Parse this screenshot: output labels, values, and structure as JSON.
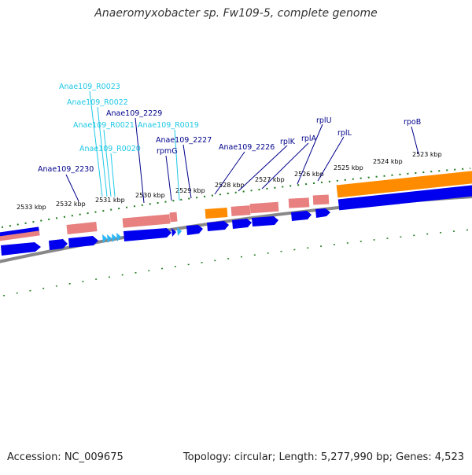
{
  "title": "Anaeromyxobacter sp. Fw109-5, complete genome",
  "footer": {
    "accession": "Accession: NC_009675",
    "summary": "Topology: circular; Length: 5,277,990 bp; Genes: 4,523"
  },
  "colors": {
    "cds": "#0000ee",
    "rna_tick": "#29b6f6",
    "gene_pink": "#e88080",
    "gene_orange": "#ff8c00",
    "label_dark": "#00008b",
    "label_light": "#1ec8e6",
    "tick": "#1e7a1e",
    "backbone": "#888888"
  },
  "scale": {
    "unit": "kbp",
    "labels": [
      "2533 kbp",
      "2532 kbp",
      "2531 kbp",
      "2530 kbp",
      "2529 kbp",
      "2528 kbp",
      "2527 kbp",
      "2526 kbp",
      "2525 kbp",
      "2524 kbp",
      "2523 kbp"
    ]
  },
  "gene_labels": [
    {
      "text": "Anae109_R0023",
      "style": "light"
    },
    {
      "text": "Anae109_R0022",
      "style": "light"
    },
    {
      "text": "Anae109_R0021",
      "style": "light"
    },
    {
      "text": "Anae109_R0020",
      "style": "light"
    },
    {
      "text": "Anae109_R0019",
      "style": "light"
    },
    {
      "text": "Anae109_2229",
      "style": "dark"
    },
    {
      "text": "Anae109_2230",
      "style": "dark"
    },
    {
      "text": "Anae109_2227",
      "style": "dark"
    },
    {
      "text": "rpmG",
      "style": "dark"
    },
    {
      "text": "Anae109_2226",
      "style": "dark"
    },
    {
      "text": "rplK",
      "style": "dark"
    },
    {
      "text": "rplA",
      "style": "dark"
    },
    {
      "text": "rplU",
      "style": "dark"
    },
    {
      "text": "rplL",
      "style": "dark"
    },
    {
      "text": "rpoB",
      "style": "dark"
    }
  ]
}
